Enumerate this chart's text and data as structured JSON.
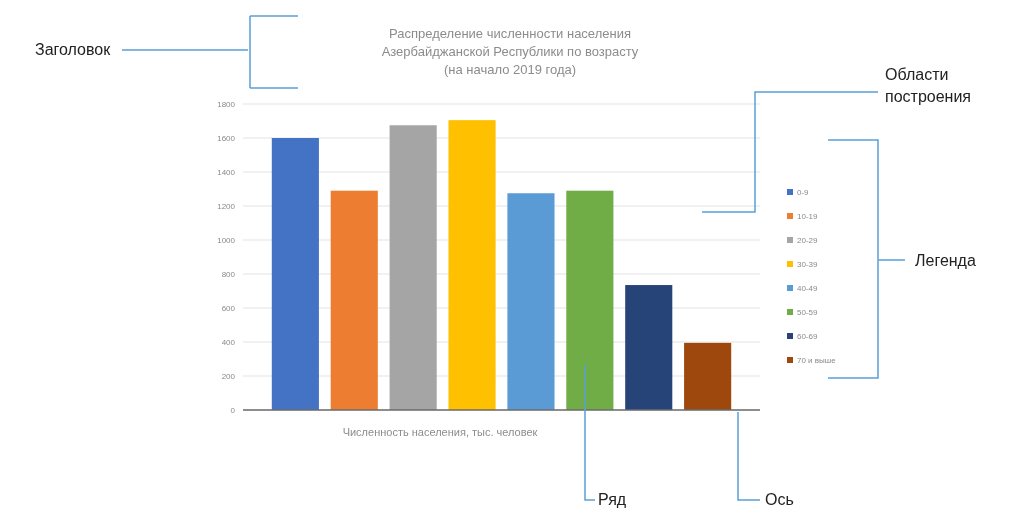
{
  "chart_data": {
    "type": "bar",
    "title": "Распределение численности населения Азербайджанской Республики по возрасту (на начало 2019 года)",
    "xlabel": "Численность населения, тыс. человек",
    "categories": [
      null
    ],
    "series": [
      {
        "name": "0-9",
        "color": "#4472c4",
        "values": [
          1600
        ]
      },
      {
        "name": "10-19",
        "color": "#ed7d31",
        "values": [
          1290
        ]
      },
      {
        "name": "20-29",
        "color": "#a5a5a5",
        "values": [
          1675
        ]
      },
      {
        "name": "30-39",
        "color": "#ffc000",
        "values": [
          1705
        ]
      },
      {
        "name": "40-49",
        "color": "#5b9bd5",
        "values": [
          1275
        ]
      },
      {
        "name": "50-59",
        "color": "#70ad47",
        "values": [
          1290
        ]
      },
      {
        "name": "60-69",
        "color": "#264478",
        "values": [
          735
        ]
      },
      {
        "name": "70 и выше",
        "color": "#9e480e",
        "values": [
          395
        ]
      }
    ],
    "ylim": [
      0,
      1800
    ],
    "yticks": [
      0,
      200,
      400,
      600,
      800,
      1000,
      1200,
      1400,
      1600,
      1800
    ],
    "grid": "y",
    "legend": "right",
    "annotations": [
      "Заголовок",
      "Области построения",
      "Легенда",
      "Ряд",
      "Ось"
    ]
  }
}
